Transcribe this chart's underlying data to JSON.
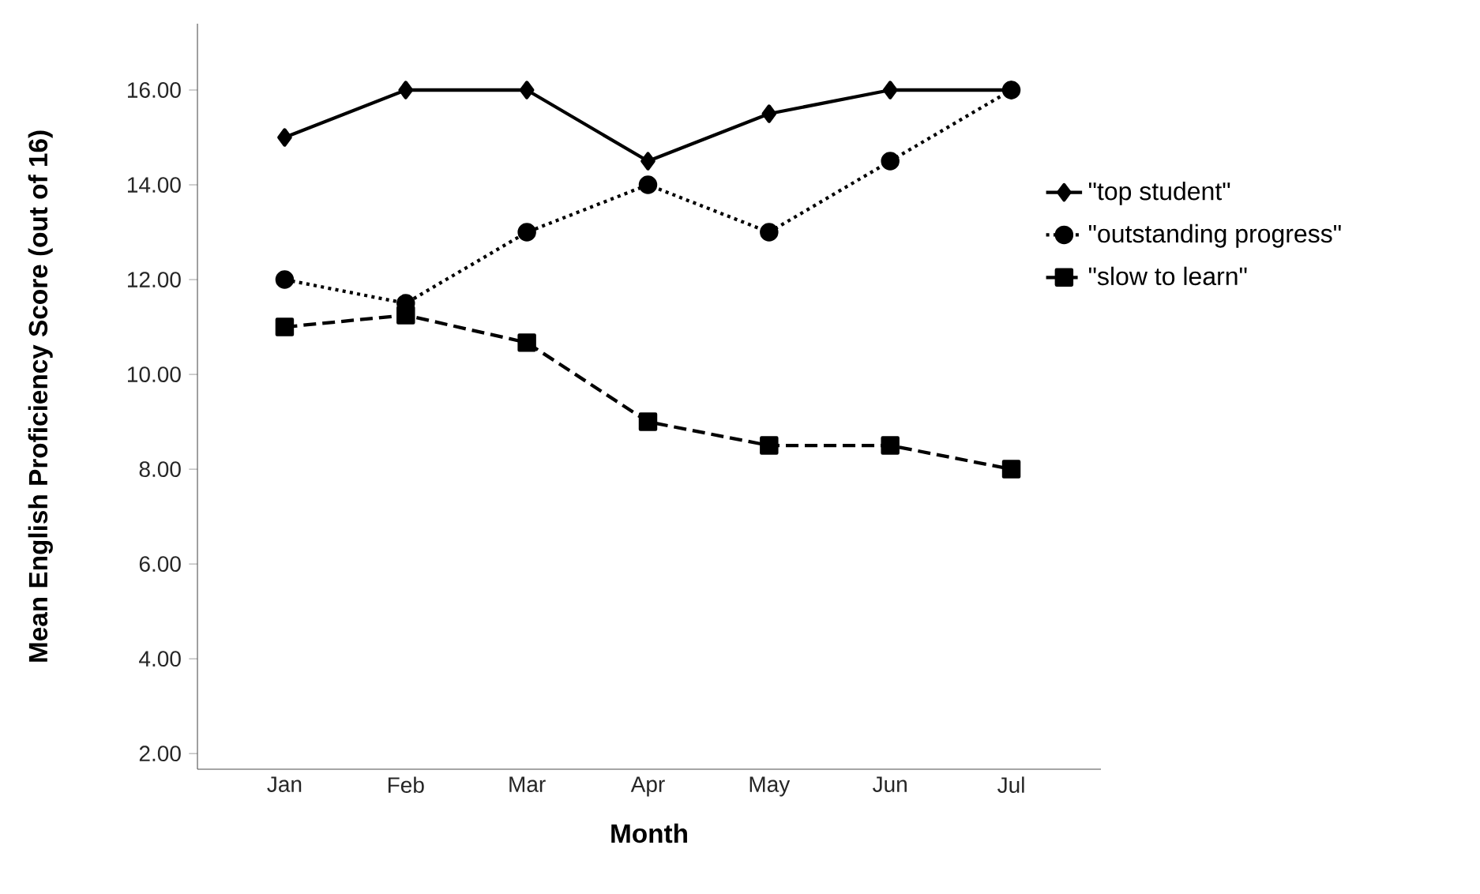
{
  "chart_data": {
    "type": "line",
    "xlabel": "Month",
    "ylabel": "Mean English Proficiency Score (out of 16)",
    "categories": [
      "Jan",
      "Feb",
      "Mar",
      "Apr",
      "May",
      "Jun",
      "Jul"
    ],
    "series": [
      {
        "name": "\"top student\"",
        "color": "#000000",
        "marker": "diamond",
        "line_style": "solid",
        "values": [
          15,
          16,
          16,
          14.5,
          15.5,
          16,
          16
        ]
      },
      {
        "name": "\"outstanding progress\"",
        "color": "#000000",
        "marker": "circle",
        "line_style": "dotted",
        "values": [
          12,
          11.5,
          13,
          14,
          13,
          14.5,
          16
        ]
      },
      {
        "name": "\"slow to learn\"",
        "color": "#000000",
        "marker": "square",
        "line_style": "dashed",
        "values": [
          11,
          11.25,
          10.67,
          9,
          8.5,
          8.5,
          8
        ]
      }
    ],
    "ylim": [
      1.67,
      17.4
    ],
    "yticks": [
      {
        "value": 2,
        "label": "2.00"
      },
      {
        "value": 4,
        "label": "4.00"
      },
      {
        "value": 6,
        "label": "6.00"
      },
      {
        "value": 8,
        "label": "8.00"
      },
      {
        "value": 10,
        "label": "10.00"
      },
      {
        "value": 12,
        "label": "12.00"
      },
      {
        "value": 14,
        "label": "14.00"
      },
      {
        "value": 16,
        "label": "16.00"
      }
    ],
    "grid": false,
    "legend": "right"
  }
}
